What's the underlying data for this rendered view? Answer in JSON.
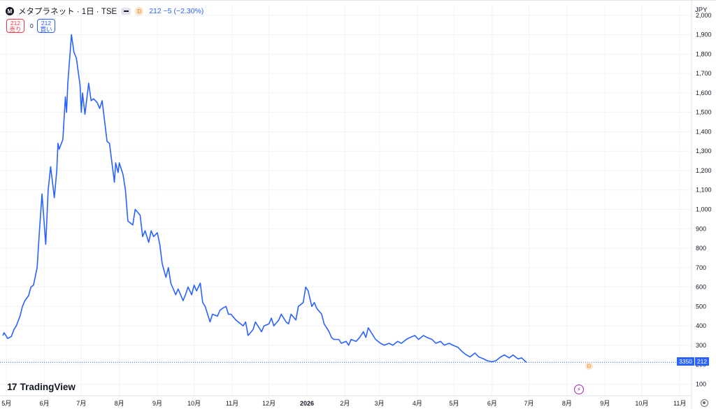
{
  "header": {
    "symbol_initial": "M",
    "title": "メタプラネット · 1日 · TSE",
    "interval_badge": "D",
    "change_text": "212 −5 (−2.30%)"
  },
  "trade": {
    "sell_price": "212",
    "sell_label": "売り",
    "spread": "0",
    "buy_price": "212",
    "buy_label": "買い"
  },
  "axis": {
    "currency": "JPY",
    "price_tag_time": "3350",
    "price_tag_value": "212",
    "settings_icon": "gear-icon",
    "event_icon": "lightning-icon"
  },
  "brand": {
    "name": "TradingView",
    "mark": "17"
  },
  "chart_data": {
    "type": "line",
    "title": "",
    "series": [
      {
        "name": "",
        "color": "#2962ff",
        "points": [
          [
            "2025-04-28",
            350
          ],
          [
            "2025-04-29",
            365
          ],
          [
            "2025-05-01",
            345
          ],
          [
            "2025-05-02",
            335
          ],
          [
            "2025-05-05",
            345
          ],
          [
            "2025-05-07",
            380
          ],
          [
            "2025-05-09",
            400
          ],
          [
            "2025-05-12",
            450
          ],
          [
            "2025-05-14",
            500
          ],
          [
            "2025-05-16",
            530
          ],
          [
            "2025-05-19",
            555
          ],
          [
            "2025-05-21",
            600
          ],
          [
            "2025-05-23",
            610
          ],
          [
            "2025-05-26",
            700
          ],
          [
            "2025-05-28",
            900
          ],
          [
            "2025-05-30",
            1080
          ],
          [
            "2025-06-02",
            820
          ],
          [
            "2025-06-04",
            1100
          ],
          [
            "2025-06-06",
            1220
          ],
          [
            "2025-06-09",
            1060
          ],
          [
            "2025-06-11",
            1200
          ],
          [
            "2025-06-12",
            1340
          ],
          [
            "2025-06-13",
            1310
          ],
          [
            "2025-06-16",
            1360
          ],
          [
            "2025-06-18",
            1580
          ],
          [
            "2025-06-19",
            1500
          ],
          [
            "2025-06-20",
            1650
          ],
          [
            "2025-06-23",
            1900
          ],
          [
            "2025-06-25",
            1810
          ],
          [
            "2025-06-27",
            1780
          ],
          [
            "2025-06-30",
            1640
          ],
          [
            "2025-07-01",
            1500
          ],
          [
            "2025-07-02",
            1600
          ],
          [
            "2025-07-04",
            1490
          ],
          [
            "2025-07-07",
            1650
          ],
          [
            "2025-07-09",
            1560
          ],
          [
            "2025-07-11",
            1570
          ],
          [
            "2025-07-14",
            1550
          ],
          [
            "2025-07-16",
            1520
          ],
          [
            "2025-07-18",
            1560
          ],
          [
            "2025-07-22",
            1350
          ],
          [
            "2025-07-24",
            1340
          ],
          [
            "2025-07-28",
            1140
          ],
          [
            "2025-07-29",
            1240
          ],
          [
            "2025-07-31",
            1190
          ],
          [
            "2025-08-01",
            1240
          ],
          [
            "2025-08-04",
            1180
          ],
          [
            "2025-08-06",
            1100
          ],
          [
            "2025-08-08",
            940
          ],
          [
            "2025-08-12",
            920
          ],
          [
            "2025-08-14",
            1000
          ],
          [
            "2025-08-18",
            970
          ],
          [
            "2025-08-20",
            860
          ],
          [
            "2025-08-22",
            890
          ],
          [
            "2025-08-25",
            830
          ],
          [
            "2025-08-27",
            890
          ],
          [
            "2025-08-29",
            860
          ],
          [
            "2025-09-01",
            880
          ],
          [
            "2025-09-03",
            820
          ],
          [
            "2025-09-05",
            720
          ],
          [
            "2025-09-08",
            650
          ],
          [
            "2025-09-10",
            700
          ],
          [
            "2025-09-12",
            620
          ],
          [
            "2025-09-16",
            560
          ],
          [
            "2025-09-18",
            590
          ],
          [
            "2025-09-22",
            530
          ],
          [
            "2025-09-24",
            560
          ],
          [
            "2025-09-26",
            600
          ],
          [
            "2025-09-29",
            560
          ],
          [
            "2025-10-01",
            610
          ],
          [
            "2025-10-03",
            580
          ],
          [
            "2025-10-06",
            620
          ],
          [
            "2025-10-08",
            520
          ],
          [
            "2025-10-10",
            500
          ],
          [
            "2025-10-14",
            420
          ],
          [
            "2025-10-16",
            460
          ],
          [
            "2025-10-20",
            450
          ],
          [
            "2025-10-22",
            480
          ],
          [
            "2025-10-24",
            490
          ],
          [
            "2025-10-27",
            500
          ],
          [
            "2025-10-29",
            460
          ],
          [
            "2025-10-31",
            460
          ],
          [
            "2025-11-04",
            430
          ],
          [
            "2025-11-06",
            420
          ],
          [
            "2025-11-10",
            400
          ],
          [
            "2025-11-12",
            420
          ],
          [
            "2025-11-14",
            350
          ],
          [
            "2025-11-18",
            380
          ],
          [
            "2025-11-20",
            420
          ],
          [
            "2025-11-25",
            370
          ],
          [
            "2025-11-27",
            400
          ],
          [
            "2025-12-01",
            410
          ],
          [
            "2025-12-03",
            440
          ],
          [
            "2025-12-05",
            400
          ],
          [
            "2025-12-09",
            430
          ],
          [
            "2025-12-11",
            460
          ],
          [
            "2025-12-15",
            420
          ],
          [
            "2025-12-17",
            410
          ],
          [
            "2025-12-19",
            460
          ],
          [
            "2025-12-23",
            430
          ],
          [
            "2025-12-25",
            500
          ],
          [
            "2025-12-29",
            520
          ],
          [
            "2025-12-31",
            600
          ],
          [
            "2026-01-02",
            580
          ],
          [
            "2026-01-05",
            500
          ],
          [
            "2026-01-07",
            520
          ],
          [
            "2026-01-09",
            490
          ],
          [
            "2026-01-13",
            460
          ],
          [
            "2026-01-15",
            410
          ],
          [
            "2026-01-19",
            370
          ],
          [
            "2026-01-21",
            340
          ],
          [
            "2026-01-23",
            330
          ],
          [
            "2026-01-27",
            330
          ],
          [
            "2026-01-29",
            310
          ],
          [
            "2026-02-02",
            320
          ],
          [
            "2026-02-04",
            300
          ],
          [
            "2026-02-06",
            330
          ],
          [
            "2026-02-10",
            320
          ],
          [
            "2026-02-13",
            340
          ],
          [
            "2026-02-16",
            370
          ],
          [
            "2026-02-18",
            340
          ],
          [
            "2026-02-20",
            390
          ],
          [
            "2026-02-24",
            350
          ],
          [
            "2026-02-26",
            330
          ],
          [
            "2026-03-02",
            310
          ],
          [
            "2026-03-05",
            300
          ],
          [
            "2026-03-09",
            310
          ],
          [
            "2026-03-12",
            300
          ],
          [
            "2026-03-16",
            320
          ],
          [
            "2026-03-19",
            310
          ],
          [
            "2026-03-23",
            330
          ],
          [
            "2026-03-26",
            340
          ],
          [
            "2026-03-30",
            350
          ],
          [
            "2026-04-02",
            330
          ],
          [
            "2026-04-06",
            350
          ],
          [
            "2026-04-09",
            340
          ],
          [
            "2026-04-13",
            330
          ],
          [
            "2026-04-16",
            310
          ],
          [
            "2026-04-20",
            320
          ],
          [
            "2026-04-23",
            300
          ],
          [
            "2026-04-27",
            310
          ],
          [
            "2026-04-30",
            300
          ],
          [
            "2026-05-04",
            290
          ],
          [
            "2026-05-07",
            270
          ],
          [
            "2026-05-11",
            250
          ],
          [
            "2026-05-14",
            240
          ],
          [
            "2026-05-18",
            260
          ],
          [
            "2026-05-21",
            240
          ],
          [
            "2026-05-25",
            230
          ],
          [
            "2026-05-28",
            220
          ],
          [
            "2026-06-01",
            215
          ],
          [
            "2026-06-04",
            220
          ],
          [
            "2026-06-08",
            240
          ],
          [
            "2026-06-11",
            250
          ],
          [
            "2026-06-15",
            235
          ],
          [
            "2026-06-18",
            250
          ],
          [
            "2026-06-22",
            230
          ],
          [
            "2026-06-25",
            235
          ],
          [
            "2026-06-29",
            212
          ]
        ]
      }
    ],
    "x_axis": {
      "tick_labels": [
        "5月",
        "6月",
        "7月",
        "8月",
        "9月",
        "10月",
        "11月",
        "12月",
        "2026",
        "2月",
        "3月",
        "4月",
        "5月",
        "6月",
        "7月",
        "8月",
        "9月",
        "10月",
        "11月"
      ],
      "tick_dates": [
        "2025-05-01",
        "2025-06-01",
        "2025-07-01",
        "2025-08-01",
        "2025-09-01",
        "2025-10-01",
        "2025-11-01",
        "2025-12-01",
        "2026-01-01",
        "2026-02-01",
        "2026-03-01",
        "2026-04-01",
        "2026-05-01",
        "2026-06-01",
        "2026-07-01",
        "2026-08-01",
        "2026-09-01",
        "2026-10-01",
        "2026-11-01"
      ],
      "range": [
        "2025-04-28",
        "2026-11-10"
      ]
    },
    "y_axis": {
      "tick_labels": [
        "100",
        "200",
        "300",
        "400",
        "500",
        "600",
        "700",
        "800",
        "900",
        "1,000",
        "1,100",
        "1,200",
        "1,300",
        "1,400",
        "1,500",
        "1,600",
        "1,700",
        "1,800",
        "1,900",
        "2,000"
      ],
      "tick_values": [
        100,
        200,
        300,
        400,
        500,
        600,
        700,
        800,
        900,
        1000,
        1100,
        1200,
        1300,
        1400,
        1500,
        1600,
        1700,
        1800,
        1900,
        2000
      ],
      "range": [
        40,
        2050
      ],
      "position": "right"
    },
    "last_price": 212,
    "grid": true
  }
}
